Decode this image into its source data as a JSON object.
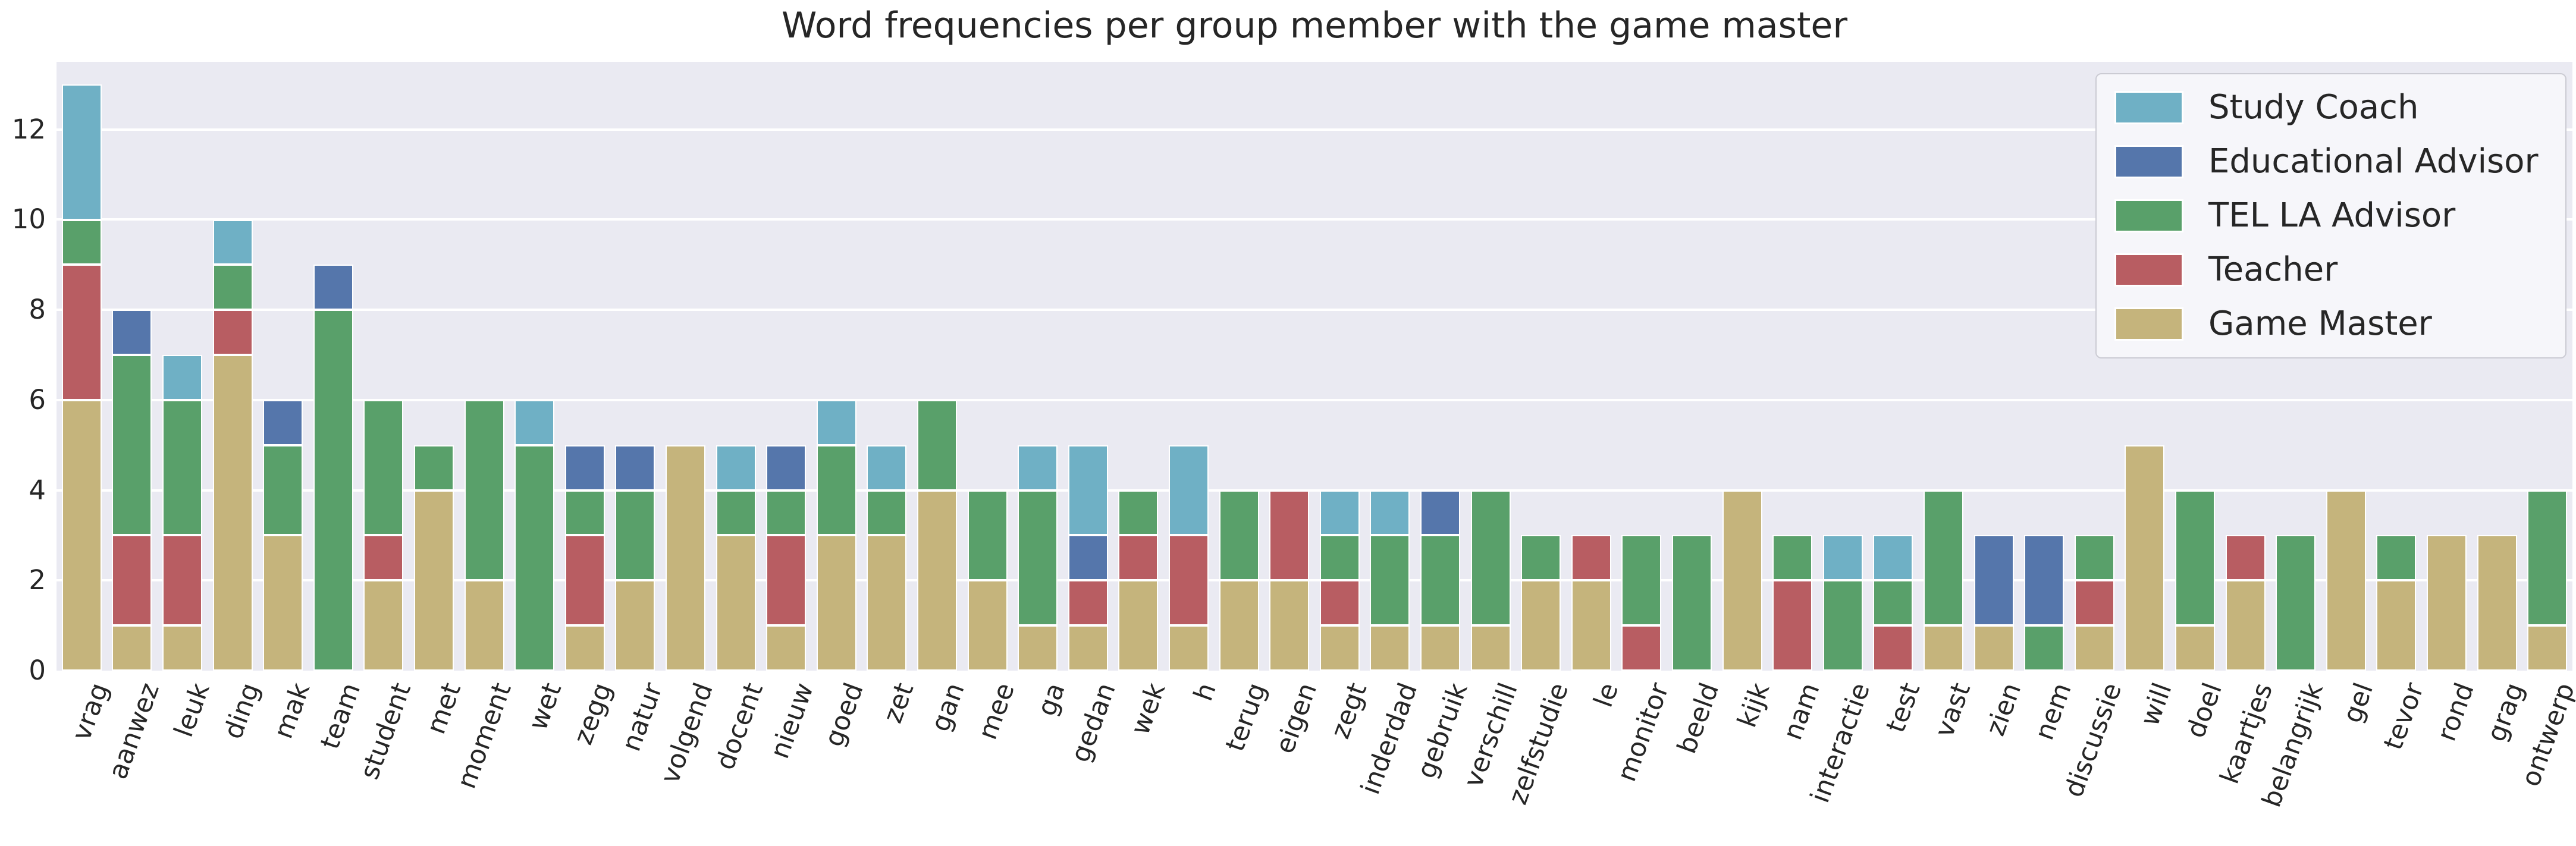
{
  "title": "Word frequencies per group member with the game master",
  "colors": {
    "figure_background": "#ffffff",
    "axes_background": "#EAEAF2",
    "gridline": "#ffffff",
    "text": "#262626",
    "study_coach": "#6FB0C5",
    "educational_advisor": "#5576AB",
    "tel_la_advisor": "#59A06A",
    "teacher": "#B85D62",
    "game_master": "#C5B47C"
  },
  "chart_data": {
    "type": "bar",
    "stacked": true,
    "stack_order": "bottom-to-top",
    "grid": true,
    "title": "Word frequencies per group member with the game master",
    "xlabel": "",
    "ylabel": "",
    "yticks": [
      0,
      2,
      4,
      6,
      8,
      10,
      12
    ],
    "ylim": [
      0,
      13.5
    ],
    "categories": [
      "vrag",
      "aanwez",
      "leuk",
      "ding",
      "mak",
      "team",
      "student",
      "met",
      "moment",
      "wet",
      "zegg",
      "natur",
      "volgend",
      "docent",
      "nieuw",
      "goed",
      "zet",
      "gan",
      "mee",
      "ga",
      "gedan",
      "wek",
      "h",
      "terug",
      "eigen",
      "zegt",
      "inderdad",
      "gebruik",
      "verschill",
      "zelfstudie",
      "le",
      "monitor",
      "beeld",
      "kijk",
      "nam",
      "interactie",
      "test",
      "vast",
      "zien",
      "nem",
      "discussie",
      "will",
      "doel",
      "kaartjes",
      "belangrijk",
      "gel",
      "tevor",
      "rond",
      "grag",
      "ontwerp"
    ],
    "series": [
      {
        "name": "Game Master",
        "color": "#C5B47C",
        "values": [
          6,
          1,
          1,
          7,
          3,
          0,
          2,
          4,
          2,
          0,
          1,
          2,
          5,
          3,
          1,
          3,
          3,
          4,
          2,
          1,
          1,
          2,
          1,
          2,
          2,
          1,
          1,
          1,
          1,
          2,
          2,
          0,
          0,
          4,
          0,
          0,
          0,
          1,
          1,
          0,
          1,
          5,
          1,
          2,
          0,
          4,
          2,
          3,
          3,
          1
        ]
      },
      {
        "name": "Teacher",
        "color": "#B85D62",
        "values": [
          3,
          2,
          2,
          1,
          0,
          0,
          1,
          0,
          0,
          0,
          2,
          0,
          0,
          0,
          2,
          0,
          0,
          0,
          0,
          0,
          1,
          1,
          2,
          0,
          2,
          1,
          0,
          0,
          0,
          0,
          1,
          1,
          0,
          0,
          2,
          0,
          1,
          0,
          0,
          0,
          1,
          0,
          0,
          1,
          0,
          0,
          0,
          0,
          0,
          0
        ]
      },
      {
        "name": "TEL LA Advisor",
        "color": "#59A06A",
        "values": [
          1,
          4,
          3,
          1,
          2,
          8,
          3,
          1,
          4,
          5,
          1,
          2,
          0,
          1,
          1,
          2,
          1,
          2,
          2,
          3,
          0,
          1,
          0,
          2,
          0,
          1,
          2,
          2,
          3,
          1,
          0,
          2,
          3,
          0,
          1,
          2,
          1,
          3,
          0,
          1,
          1,
          0,
          3,
          0,
          3,
          0,
          1,
          0,
          0,
          3
        ]
      },
      {
        "name": "Educational Advisor",
        "color": "#5576AB",
        "values": [
          0,
          1,
          0,
          0,
          1,
          1,
          0,
          0,
          0,
          0,
          1,
          1,
          0,
          0,
          1,
          0,
          0,
          0,
          0,
          0,
          1,
          0,
          0,
          0,
          0,
          0,
          0,
          1,
          0,
          0,
          0,
          0,
          0,
          0,
          0,
          0,
          0,
          0,
          2,
          2,
          0,
          0,
          0,
          0,
          0,
          0,
          0,
          0,
          0,
          0
        ]
      },
      {
        "name": "Study Coach",
        "color": "#6FB0C5",
        "values": [
          3,
          0,
          1,
          1,
          0,
          0,
          0,
          0,
          0,
          1,
          0,
          0,
          0,
          1,
          0,
          1,
          1,
          0,
          0,
          1,
          2,
          0,
          2,
          0,
          0,
          1,
          1,
          0,
          0,
          0,
          0,
          0,
          0,
          0,
          0,
          1,
          1,
          0,
          0,
          0,
          0,
          0,
          0,
          0,
          0,
          0,
          0,
          0,
          0,
          0
        ]
      }
    ],
    "legend": {
      "position": "upper right",
      "entries": [
        "Study Coach",
        "Educational Advisor",
        "TEL LA Advisor",
        "Teacher",
        "Game Master"
      ]
    }
  }
}
